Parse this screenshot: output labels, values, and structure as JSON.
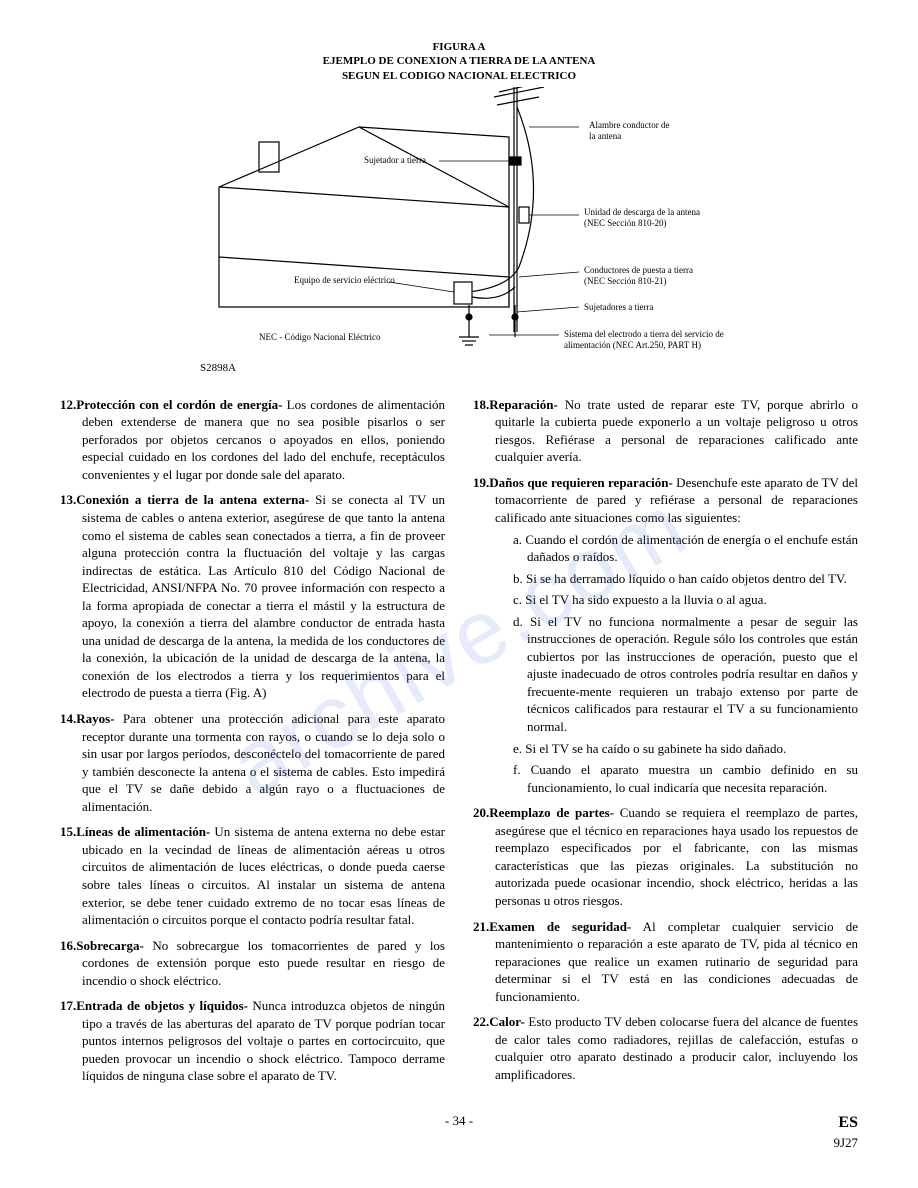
{
  "figure": {
    "title_line1": "FIGURA A",
    "title_line2": "EJEMPLO DE CONEXION A TIERRA DE LA ANTENA",
    "title_line3": "SEGUN EL CODIGO NACIONAL ELECTRICO",
    "code": "S2898A",
    "labels": {
      "lead_in": "Alambre conductor de\nla antena",
      "ground_clamp": "Sujetador a tierra",
      "discharge_unit": "Unidad de descarga de la antena\n(NEC Sección 810-20)",
      "service_equip": "Equipo de servicio eléctrico",
      "ground_conductors": "Conductores de puesta a tierra\n(NEC Sección 810-21)",
      "ground_clamps": "Sujetadores a tierra",
      "nec_note": "NEC - Código Nacional Eléctrico",
      "electrode_system": "Sistema del electrodo a tierra del servicio de\nalimentación (NEC Art.250, PART H)"
    }
  },
  "items": [
    {
      "num": "12.",
      "head": "Protección con el cordón de energía-",
      "body": " Los cordones de alimentación deben extenderse de manera que no sea posible pisarlos o ser perforados por objetos cercanos o apoyados en ellos, poniendo especial cuidado en los cordones del lado del enchufe, receptáculos convenientes y el lugar por donde sale del aparato."
    },
    {
      "num": "13.",
      "head": "Conexión a tierra de la antena externa-",
      "body": " Si se conecta al TV un sistema de cables o antena exterior, asegúrese de que tanto la antena como el sistema de cables sean conectados a tierra, a fin de proveer alguna protección contra la fluctuación del voltaje y las cargas indirectas de estática. Las Artículo 810 del Código Nacional de Electricidad, ANSI/NFPA No. 70 provee información con respecto a la forma apropiada de conectar a tierra el mástil y la estructura de apoyo, la conexión a tierra del alambre conductor de entrada hasta una unidad de descarga de la antena, la medida de los conductores de la conexión, la ubicación de la unidad de descarga de la antena, la conexión de los electrodos a tierra y los requerimientos para el electrodo de puesta a tierra (Fig. A)"
    },
    {
      "num": "14.",
      "head": "Rayos-",
      "body": " Para obtener una protección adicional para este aparato receptor durante una tormenta con rayos, o cuando se lo deja solo o sin usar por largos períodos, desconéctelo del tomacorriente de pared y también desconecte la antena o el sistema de cables. Esto impedirá que el TV se dañe debido a algún rayo o a fluctuaciones de alimentación."
    },
    {
      "num": "15.",
      "head": "Líneas de alimentación-",
      "body": " Un sistema de antena externa no debe estar ubicado en la vecindad de líneas de alimentación aéreas u otros circuitos de alimentación de luces eléctricas, o donde pueda caerse sobre tales líneas o circuitos. Al instalar un sistema de antena exterior, se debe tener cuidado extremo de no tocar esas líneas de alimentación o circuitos porque el contacto podría resultar fatal."
    },
    {
      "num": "16.",
      "head": "Sobrecarga-",
      "body": " No sobrecargue los tomacorrientes de pared y los cordones de extensión porque esto puede resultar en riesgo de incendio o shock eléctrico."
    },
    {
      "num": "17.",
      "head": "Entrada de objetos y líquidos-",
      "body": " Nunca introduzca objetos de ningún tipo a través de las aberturas del aparato de TV porque podrían tocar puntos internos peligrosos del voltaje o partes en cortocircuito, que pueden provocar un incendio o shock eléctrico. Tampoco derrame líquidos de ninguna clase sobre el aparato de TV."
    },
    {
      "num": "18.",
      "head": "Reparación-",
      "body": " No trate usted de reparar este TV, porque abrirlo o quitarle la cubierta puede exponerlo a un voltaje peligroso u otros riesgos. Refiérase a personal de reparaciones calificado ante cualquier avería."
    },
    {
      "num": "19.",
      "head": "Daños que requieren reparación-",
      "body": " Desenchufe este aparato de TV del tomacorriente de pared y refiérase a personal de reparaciones calificado ante situaciones como las siguientes:",
      "subs": [
        {
          "m": "a.",
          "t": "Cuando el cordón de alimentación de energía o el enchufe están dañados o raídos."
        },
        {
          "m": "b.",
          "t": "Si se ha derramado líquido o han caído objetos dentro del TV."
        },
        {
          "m": "c.",
          "t": "Si el TV ha sido expuesto a la lluvia o al agua."
        },
        {
          "m": "d.",
          "t": "Si el TV no funciona normalmente a pesar de seguir las instrucciones de operación. Regule sólo los controles que están cubiertos por las instrucciones de operación, puesto que el ajuste inadecuado de otros controles podría resultar en daños y frecuente-mente requieren un trabajo extenso por parte de técnicos calificados para restaurar el TV a su funcionamiento normal."
        },
        {
          "m": "e.",
          "t": "Si el TV se ha caído o su gabinete ha sido dañado."
        },
        {
          "m": "f.",
          "t": "Cuando el aparato muestra un cambio definido en su funcionamiento, lo cual indicaría que necesita reparación."
        }
      ]
    },
    {
      "num": "20.",
      "head": "Reemplazo de partes-",
      "body": " Cuando se requiera el reemplazo de partes, asegúrese que el técnico en reparaciones haya usado los repuestos de reemplazo especificados por el fabricante, con las mismas características que las piezas originales. La substitución no autorizada puede ocasionar incendio, shock eléctrico, heridas a las personas u otros riesgos."
    },
    {
      "num": "21.",
      "head": "Examen de seguridad-",
      "body": " Al completar cualquier servicio de mantenimiento o reparación a este aparato de TV, pida al técnico en reparaciones que realice un examen rutinario de seguridad para determinar si el TV está en las condiciones adecuadas de funcionamiento."
    },
    {
      "num": "22.",
      "head": "Calor-",
      "body": " Esto producto TV deben colocarse fuera del alcance de fuentes de calor tales como radiadores, rejillas de calefacción, estufas o cualquier otro aparato destinado a producir calor, incluyendo los amplificadores."
    }
  ],
  "footer": {
    "page": "- 34 -",
    "lang": "ES",
    "code": "9J27"
  },
  "watermark": "archive.com"
}
